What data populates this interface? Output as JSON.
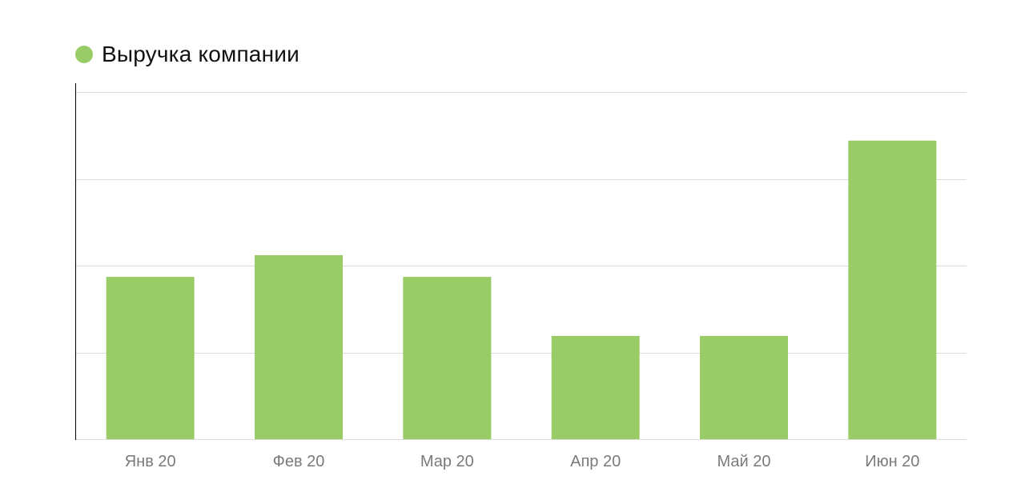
{
  "colors": {
    "bar": "#99cc66",
    "grid": "#dddddd",
    "axis": "#000000",
    "tick_text": "#7a7a7a"
  },
  "legend": {
    "label": "Выручка компании"
  },
  "chart_data": {
    "type": "bar",
    "categories": [
      "Янв 20",
      "Фев 20",
      "Мар 20",
      "Апр 20",
      "Май 20",
      "Июн 20"
    ],
    "series": [
      {
        "name": "Выручка компании",
        "values": [
          1.87,
          2.12,
          1.87,
          1.19,
          1.19,
          3.44
        ]
      }
    ],
    "ylim": [
      0,
      4
    ],
    "y_tick_labels_shown": false,
    "grid": true,
    "legend_position": "top-left",
    "title": "",
    "xlabel": "",
    "ylabel": ""
  }
}
